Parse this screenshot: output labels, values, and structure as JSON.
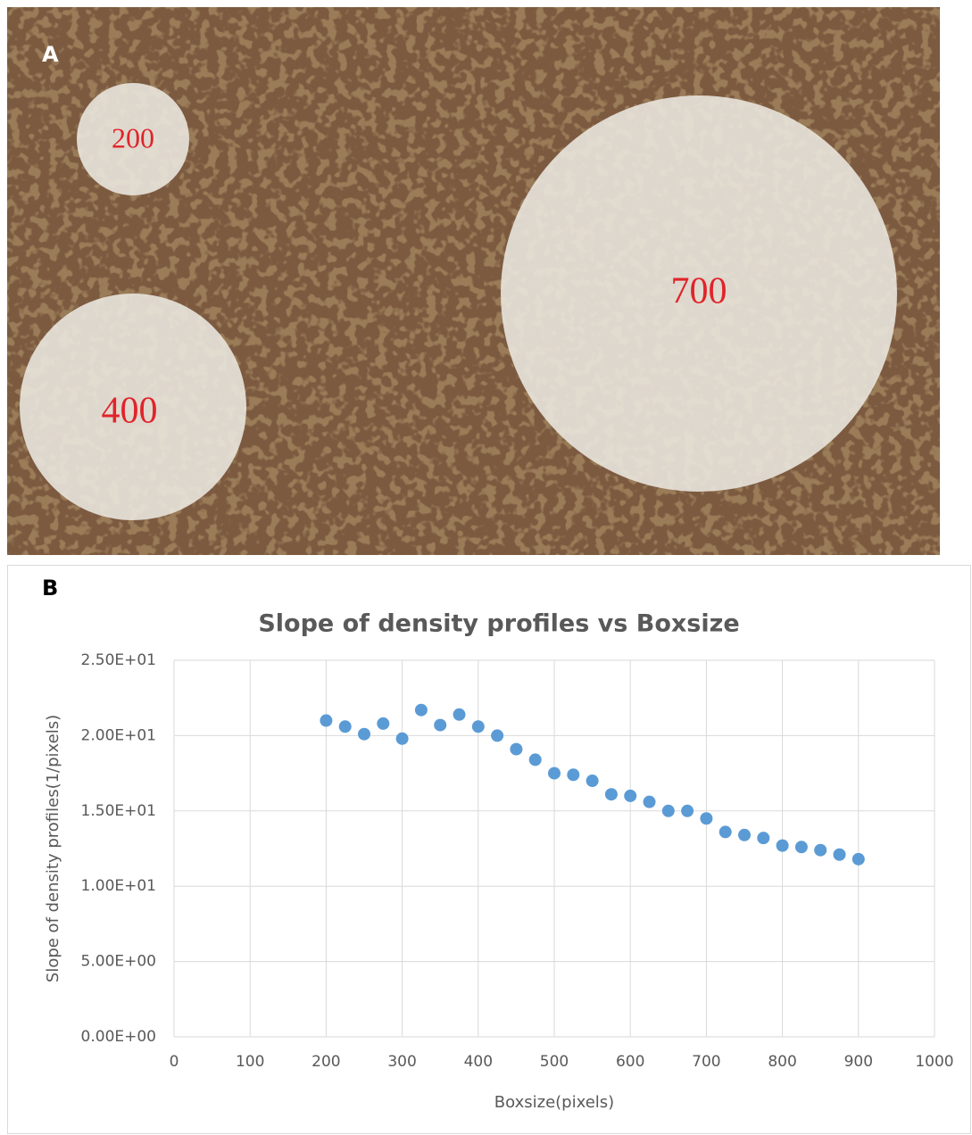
{
  "panel_a": {
    "label": "A",
    "circle_labels": [
      "200",
      "400",
      "700"
    ]
  },
  "panel_b_label": "B",
  "chart_data": {
    "type": "scatter",
    "title": "Slope of density profiles vs Boxsize",
    "x_label": "Boxsize(pixels)",
    "y_label": "Slope of density profiles(1/pixels)",
    "x": [
      200,
      225,
      250,
      275,
      300,
      325,
      350,
      375,
      400,
      425,
      450,
      475,
      500,
      525,
      550,
      575,
      600,
      625,
      650,
      675,
      700,
      725,
      750,
      775,
      800,
      825,
      850,
      875,
      900
    ],
    "series": [
      {
        "color": "#5b9bd5",
        "values": [
          21.0,
          20.6,
          20.1,
          20.8,
          19.8,
          21.7,
          20.7,
          21.4,
          20.6,
          20.0,
          19.1,
          18.4,
          17.5,
          17.4,
          17.0,
          16.1,
          16.0,
          15.6,
          15.0,
          15.0,
          14.5,
          13.6,
          13.4,
          13.2,
          12.7,
          12.6,
          12.4,
          12.1,
          11.8
        ]
      }
    ],
    "xlim": [
      0,
      1000
    ],
    "xticks": [
      0,
      100,
      200,
      300,
      400,
      500,
      600,
      700,
      800,
      900,
      1000
    ],
    "ylim": [
      0,
      25
    ],
    "yticks": [
      {
        "value": 0,
        "label": "0.00E+00"
      },
      {
        "value": 5,
        "label": "5.00E+00"
      },
      {
        "value": 10,
        "label": "1.00E+01"
      },
      {
        "value": 15,
        "label": "1.50E+01"
      },
      {
        "value": 20,
        "label": "2.00E+01"
      },
      {
        "value": 25,
        "label": "2.50E+01"
      }
    ],
    "grid": true
  }
}
